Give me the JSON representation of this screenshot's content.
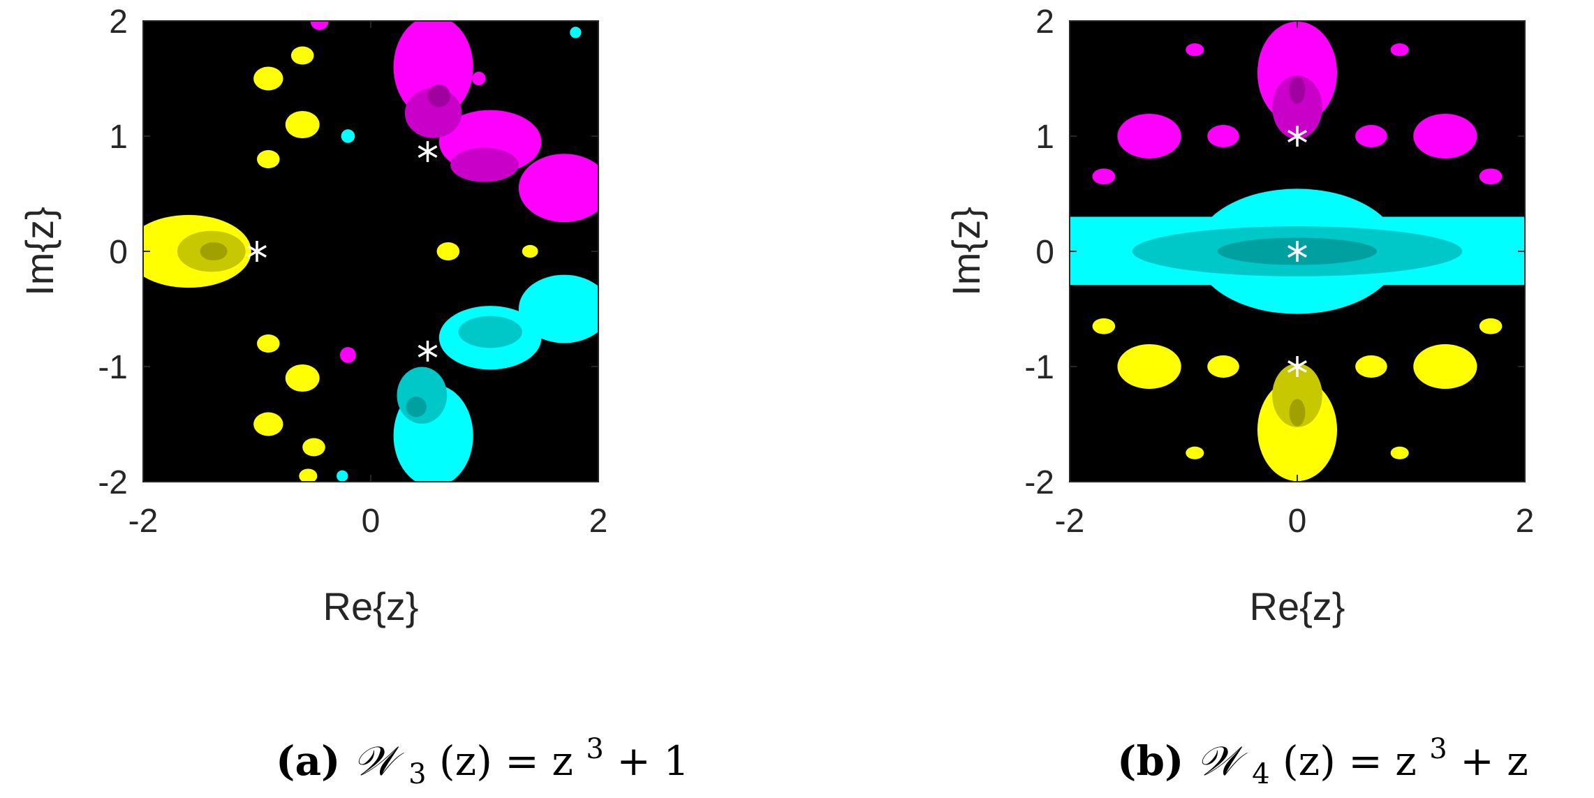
{
  "colors": {
    "black": "#000000",
    "yellow": "#ffff00",
    "yellow_dark": "#c8c800",
    "yellow_darker": "#a0a000",
    "magenta": "#ff00ff",
    "magenta_dark": "#c800c8",
    "magenta_darker": "#a000a0",
    "cyan": "#00ffff",
    "cyan_dark": "#00c8c8",
    "cyan_darker": "#00a0a0",
    "root_marker": "#ffffff"
  },
  "chart_data": [
    {
      "type": "heatmap",
      "description_kind": "Newton basins of attraction",
      "xlabel": "Re{z}",
      "ylabel": "Im{z}",
      "xlim": [
        -2,
        2
      ],
      "ylim": [
        -2,
        2
      ],
      "xticks": [
        "-2",
        "0",
        "2"
      ],
      "yticks": [
        "2",
        "1",
        "0",
        "-1",
        "-2"
      ],
      "roots": [
        {
          "x": -1,
          "y": 0,
          "basin_color": "yellow"
        },
        {
          "x": 0.5,
          "y": 0.866,
          "basin_color": "magenta"
        },
        {
          "x": 0.5,
          "y": -0.866,
          "basin_color": "cyan"
        }
      ],
      "caption": {
        "label": "(a)",
        "formula_lhs": "𝒲",
        "formula_sub": "3",
        "formula_rest": "(z) = z",
        "formula_exp": "3",
        "formula_tail": " + 1"
      }
    },
    {
      "type": "heatmap",
      "description_kind": "Newton basins of attraction",
      "xlabel": "Re{z}",
      "ylabel": "Im{z}",
      "xlim": [
        -2,
        2
      ],
      "ylim": [
        -2,
        2
      ],
      "xticks": [
        "-2",
        "0",
        "2"
      ],
      "yticks": [
        "2",
        "1",
        "0",
        "-1",
        "-2"
      ],
      "roots": [
        {
          "x": 0,
          "y": 1,
          "basin_color": "magenta"
        },
        {
          "x": 0,
          "y": 0,
          "basin_color": "cyan"
        },
        {
          "x": 0,
          "y": -1,
          "basin_color": "yellow"
        }
      ],
      "caption": {
        "label": "(b)",
        "formula_lhs": "𝒲",
        "formula_sub": "4",
        "formula_rest": "(z) = z",
        "formula_exp": "3",
        "formula_tail": " + z"
      }
    }
  ]
}
